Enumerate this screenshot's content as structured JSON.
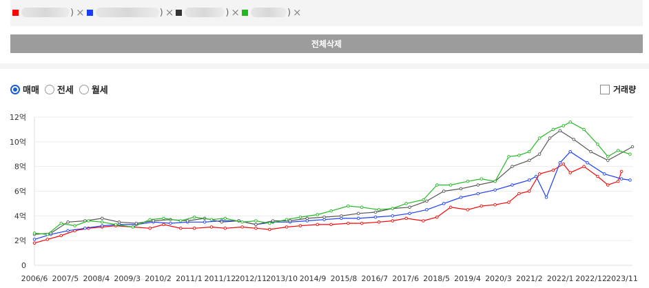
{
  "legend": [
    {
      "color": "#ff0000",
      "name_blur_width": 70
    },
    {
      "color": "#1a3cff",
      "name_blur_width": 92
    },
    {
      "color": "#333333",
      "name_blur_width": 58
    },
    {
      "color": "#22b822",
      "name_blur_width": 52
    }
  ],
  "paren_close": ")",
  "remove_glyph": "×",
  "clear_all_label": "전체삭제",
  "radio_options": [
    {
      "label": "매매",
      "checked": true
    },
    {
      "label": "전세",
      "checked": false
    },
    {
      "label": "월세",
      "checked": false
    }
  ],
  "volume_checkbox_label": "거래량",
  "chart_data": {
    "type": "line",
    "ylim": [
      0,
      12
    ],
    "y_tick_labels": [
      "0",
      "2억",
      "4억",
      "6억",
      "8억",
      "10억",
      "12억"
    ],
    "x_tick_labels": [
      "2006/6",
      "2007/5",
      "2008/4",
      "2009/3",
      "2010/2",
      "2011/1",
      "2011/12",
      "2012/11",
      "2013/10",
      "2014/9",
      "2015/8",
      "2016/7",
      "2017/6",
      "2018/5",
      "2019/4",
      "2020/3",
      "2021/2",
      "2022/1",
      "2022/12",
      "2023/11"
    ],
    "x_range": [
      2006.42,
      2023.92
    ],
    "series": [
      {
        "color": "#ff0000",
        "x": [
          2006.42,
          2006.8,
          2007.2,
          2007.6,
          2008.0,
          2008.4,
          2008.8,
          2009.3,
          2009.8,
          2010.2,
          2010.7,
          2011.1,
          2011.6,
          2012.0,
          2012.5,
          2012.9,
          2013.3,
          2013.8,
          2014.2,
          2014.7,
          2015.1,
          2015.6,
          2016.0,
          2016.5,
          2016.9,
          2017.3,
          2017.8,
          2018.2,
          2018.6,
          2019.1,
          2019.5,
          2019.9,
          2020.3,
          2020.6,
          2020.9,
          2021.2,
          2021.6,
          2021.9,
          2022.1,
          2022.5,
          2022.9,
          2023.2,
          2023.5,
          2023.6
        ],
        "y": [
          1.8,
          2.1,
          2.4,
          2.8,
          3.0,
          3.1,
          3.2,
          3.1,
          3.0,
          3.3,
          3.0,
          3.0,
          3.1,
          3.0,
          3.1,
          3.0,
          2.9,
          3.1,
          3.2,
          3.3,
          3.3,
          3.4,
          3.4,
          3.5,
          3.6,
          3.8,
          3.6,
          3.9,
          4.7,
          4.5,
          4.8,
          4.9,
          5.1,
          5.8,
          6.0,
          7.4,
          7.7,
          8.2,
          7.5,
          8.0,
          7.2,
          6.5,
          6.8,
          7.6
        ]
      },
      {
        "color": "#1a3cff",
        "x": [
          2006.42,
          2006.9,
          2007.4,
          2007.9,
          2008.4,
          2008.9,
          2009.4,
          2009.9,
          2010.4,
          2010.9,
          2011.4,
          2011.9,
          2012.4,
          2012.9,
          2013.4,
          2013.9,
          2014.4,
          2014.9,
          2015.4,
          2015.9,
          2016.4,
          2016.9,
          2017.4,
          2017.9,
          2018.4,
          2018.9,
          2019.4,
          2019.9,
          2020.4,
          2020.9,
          2021.1,
          2021.4,
          2021.8,
          2022.1,
          2022.6,
          2023.1,
          2023.6,
          2023.85
        ],
        "y": [
          2.1,
          2.5,
          2.8,
          3.0,
          3.2,
          3.3,
          3.3,
          3.5,
          3.4,
          3.5,
          3.5,
          3.6,
          3.6,
          3.3,
          3.5,
          3.5,
          3.6,
          3.7,
          3.8,
          3.8,
          3.9,
          4.0,
          4.2,
          4.5,
          5.0,
          5.5,
          5.8,
          6.1,
          6.5,
          6.9,
          7.2,
          5.5,
          8.3,
          9.2,
          8.3,
          7.4,
          7.0,
          6.9
        ]
      },
      {
        "color": "#555555",
        "x": [
          2006.42,
          2006.9,
          2007.4,
          2007.9,
          2008.4,
          2008.9,
          2009.4,
          2009.9,
          2010.4,
          2010.9,
          2011.4,
          2011.9,
          2012.4,
          2012.9,
          2013.4,
          2013.9,
          2014.4,
          2014.9,
          2015.4,
          2015.9,
          2016.4,
          2016.9,
          2017.4,
          2017.9,
          2018.4,
          2018.9,
          2019.4,
          2019.9,
          2020.4,
          2020.9,
          2021.2,
          2021.5,
          2021.8,
          2022.2,
          2022.7,
          2023.2,
          2023.92
        ],
        "y": [
          2.5,
          2.6,
          3.5,
          3.6,
          3.8,
          3.5,
          3.4,
          3.6,
          3.7,
          3.6,
          3.8,
          3.5,
          3.6,
          3.3,
          3.6,
          3.6,
          3.8,
          3.9,
          4.0,
          4.2,
          4.3,
          4.6,
          4.7,
          5.2,
          6.0,
          6.2,
          6.5,
          6.8,
          8.0,
          8.5,
          9.0,
          10.3,
          10.9,
          10.2,
          9.2,
          8.5,
          9.6
        ]
      },
      {
        "color": "#22b822",
        "x": [
          2006.42,
          2006.8,
          2007.2,
          2007.6,
          2008.0,
          2008.4,
          2008.8,
          2009.3,
          2009.8,
          2010.2,
          2010.7,
          2011.1,
          2011.6,
          2012.0,
          2012.5,
          2012.9,
          2013.3,
          2013.8,
          2014.2,
          2014.7,
          2015.1,
          2015.6,
          2016.0,
          2016.5,
          2016.9,
          2017.3,
          2017.8,
          2018.2,
          2018.6,
          2019.1,
          2019.5,
          2019.9,
          2020.3,
          2020.6,
          2020.9,
          2021.2,
          2021.6,
          2021.9,
          2022.1,
          2022.5,
          2022.9,
          2023.2,
          2023.5,
          2023.85
        ],
        "y": [
          2.6,
          2.5,
          3.4,
          3.2,
          3.6,
          3.5,
          3.3,
          3.1,
          3.7,
          3.8,
          3.6,
          3.9,
          3.7,
          3.8,
          3.5,
          3.6,
          3.4,
          3.7,
          3.9,
          4.1,
          4.4,
          4.8,
          4.7,
          4.5,
          4.6,
          5.0,
          5.3,
          6.5,
          6.5,
          6.8,
          7.0,
          6.8,
          8.8,
          8.9,
          9.2,
          10.3,
          11.0,
          11.3,
          11.6,
          11.0,
          9.8,
          8.8,
          9.3,
          9.0
        ]
      }
    ]
  }
}
